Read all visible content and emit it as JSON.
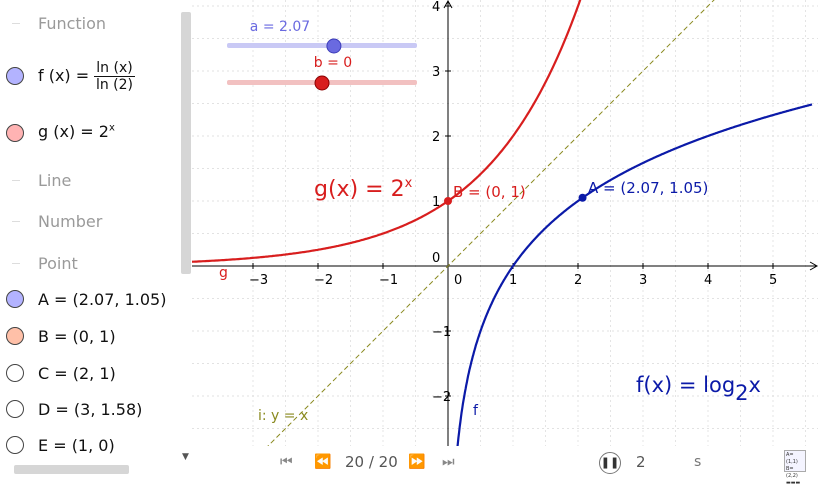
{
  "algebra": {
    "categories": {
      "function": "Function",
      "line": "Line",
      "number": "Number",
      "point": "Point"
    },
    "functions": {
      "f_prefix": "f (x)  =",
      "f_num": "ln (x)",
      "f_den": "ln (2)",
      "g_text": "g (x)  =  2",
      "g_sup": "x",
      "f_color": "#b3b3ff",
      "g_color": "#ffb3b3"
    },
    "points": [
      {
        "label": "A  =  (2.07, 1.05)",
        "color": "#b3b3ff"
      },
      {
        "label": "B  =  (0, 1)",
        "color": "#ffc0a8"
      },
      {
        "label": "C  =  (2, 1)",
        "color": "#ffffff"
      },
      {
        "label": "D  =  (3, 1.58)",
        "color": "#ffffff"
      },
      {
        "label": "E  =  (1, 0)",
        "color": "#ffffff"
      }
    ]
  },
  "sliders": {
    "a_label": "a = 2.07",
    "a_value": 2.07,
    "a_min": -5,
    "a_max": 5,
    "b_label": "b = 0",
    "b_value": 0,
    "b_min": -5,
    "b_max": 5
  },
  "graph": {
    "x_ticks": [
      "−3",
      "−2",
      "−1",
      "0",
      "1",
      "2",
      "3",
      "4",
      "5"
    ],
    "y_ticks": [
      "4",
      "3",
      "2",
      "1",
      "−1",
      "−2"
    ],
    "g_caption": "g(x) = 2",
    "g_caption_sup": "x",
    "f_caption": "f(x) = log",
    "f_caption_sub": "2",
    "f_caption_tail": "x",
    "label_A": "A = (2.07, 1.05)",
    "label_B": "B = (0, 1)",
    "label_i": "i: y = x",
    "label_f": "f",
    "label_g": "g",
    "colors": {
      "f": "#0b1aa8",
      "g": "#d81e1e",
      "i": "#8a8a1f",
      "axis": "#000000",
      "grid": "#d9d9d9"
    }
  },
  "playback": {
    "frame": "20 / 20",
    "speed": "2",
    "unit": "s"
  }
}
